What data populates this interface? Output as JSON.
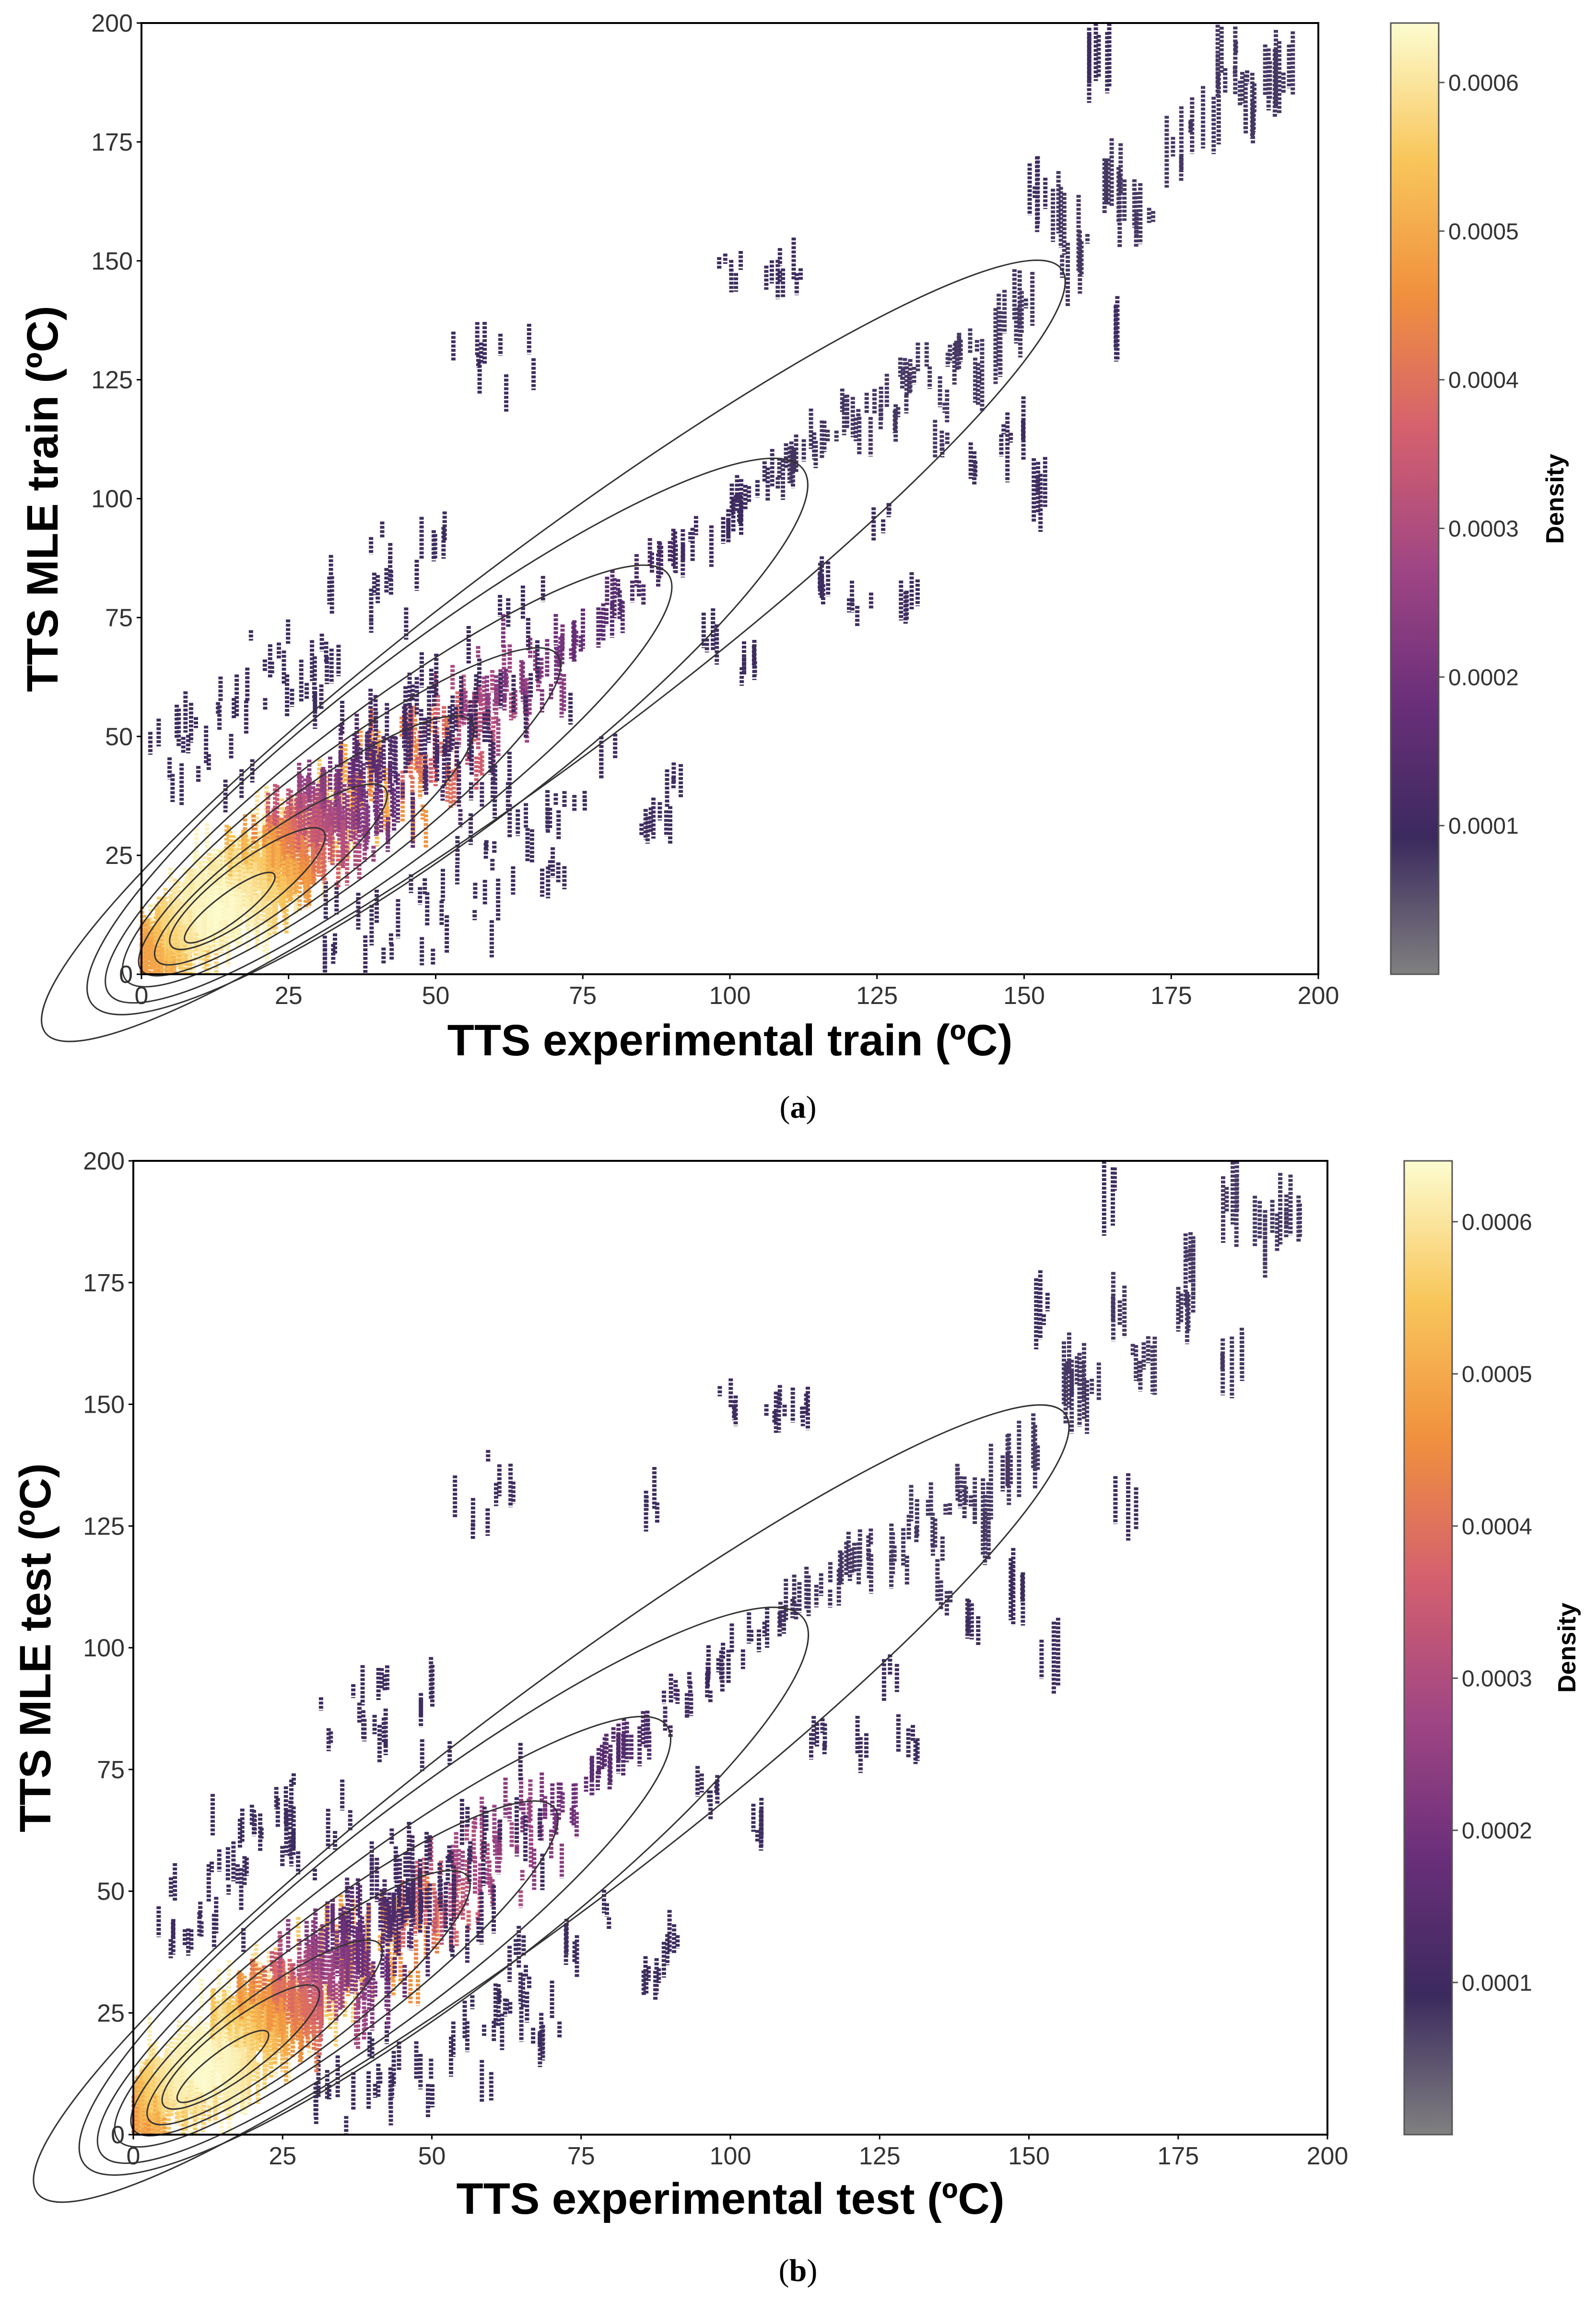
{
  "figure": {
    "panels": [
      {
        "caption_open": "(",
        "caption_letter": "a",
        "caption_close": ")"
      },
      {
        "caption_open": "(",
        "caption_letter": "b",
        "caption_close": ")"
      }
    ]
  },
  "colors": {
    "colormap": [
      "#808080",
      "#3b2a5e",
      "#6a2f7a",
      "#a04684",
      "#d4606e",
      "#f0903e",
      "#f8c65b",
      "#fcfcd0"
    ],
    "contour": "#333333",
    "frame": "#000000"
  },
  "chart_data": [
    {
      "type": "scatter",
      "title": "",
      "xlabel": "TTS experimental train (ºC)",
      "ylabel": "TTS MLE train (ºC)",
      "xlim": [
        0,
        200
      ],
      "ylim": [
        0,
        200
      ],
      "xticks": [
        0,
        25,
        50,
        75,
        100,
        125,
        150,
        175,
        200
      ],
      "yticks": [
        0,
        25,
        50,
        75,
        100,
        125,
        150,
        175,
        200
      ],
      "grid": false,
      "overlay": "kde density contours (colored by point density)",
      "colorbar": {
        "label": "Density",
        "ticks": [
          0.0001,
          0.0002,
          0.0003,
          0.0004,
          0.0005,
          0.0006
        ],
        "tick_labels": [
          "0.0001",
          "0.0002",
          "0.0003",
          "0.0004",
          "0.0005",
          "0.0006"
        ],
        "max": 0.00064
      },
      "density_peak": [
        13,
        14
      ],
      "trend": {
        "slope": 0.93,
        "intercept": 3
      },
      "clusters": [
        [
          2,
          8
        ],
        [
          5,
          10
        ],
        [
          8,
          12
        ],
        [
          10,
          15
        ],
        [
          13,
          14
        ],
        [
          15,
          18
        ],
        [
          18,
          20
        ],
        [
          20,
          22
        ],
        [
          22,
          25
        ],
        [
          25,
          27
        ],
        [
          27,
          28
        ],
        [
          30,
          30
        ],
        [
          32,
          33
        ],
        [
          35,
          35
        ],
        [
          38,
          37
        ],
        [
          40,
          40
        ],
        [
          42,
          38
        ],
        [
          45,
          45
        ],
        [
          48,
          44
        ],
        [
          50,
          48
        ],
        [
          52,
          50
        ],
        [
          55,
          52
        ],
        [
          58,
          55
        ],
        [
          60,
          58
        ],
        [
          62,
          60
        ],
        [
          65,
          62
        ],
        [
          68,
          64
        ],
        [
          70,
          67
        ],
        [
          72,
          70
        ],
        [
          75,
          72
        ],
        [
          78,
          75
        ],
        [
          80,
          78
        ],
        [
          82,
          80
        ],
        [
          85,
          82
        ],
        [
          88,
          86
        ],
        [
          90,
          88
        ],
        [
          92,
          90
        ],
        [
          95,
          92
        ],
        [
          98,
          95
        ],
        [
          100,
          97
        ],
        [
          102,
          100
        ],
        [
          105,
          103
        ],
        [
          108,
          106
        ],
        [
          110,
          108
        ],
        [
          112,
          110
        ],
        [
          115,
          112
        ],
        [
          118,
          115
        ],
        [
          120,
          118
        ],
        [
          122,
          116
        ],
        [
          125,
          120
        ],
        [
          128,
          118
        ],
        [
          130,
          125
        ],
        [
          132,
          128
        ],
        [
          135,
          122
        ],
        [
          138,
          130
        ],
        [
          140,
          132
        ],
        [
          142,
          125
        ],
        [
          145,
          135
        ],
        [
          148,
          138
        ],
        [
          150,
          140
        ],
        [
          152,
          165
        ],
        [
          155,
          160
        ],
        [
          158,
          150
        ],
        [
          160,
          155
        ],
        [
          165,
          168
        ],
        [
          166,
          135
        ],
        [
          168,
          162
        ],
        [
          170,
          160
        ],
        [
          175,
          172
        ],
        [
          177,
          178
        ],
        [
          182,
          180
        ],
        [
          184,
          192
        ],
        [
          186,
          187
        ],
        [
          188,
          182
        ],
        [
          192,
          188
        ],
        [
          194,
          190
        ],
        [
          163,
          193
        ],
        [
          100,
          148
        ],
        [
          108,
          148
        ],
        [
          111,
          148
        ],
        [
          60,
          128
        ],
        [
          38,
          82
        ],
        [
          46,
          86
        ],
        [
          86,
          30
        ],
        [
          88,
          33
        ],
        [
          20,
          60
        ],
        [
          25,
          65
        ],
        [
          30,
          62
        ],
        [
          12,
          48
        ],
        [
          8,
          45
        ],
        [
          70,
          20
        ],
        [
          65,
          28
        ],
        [
          55,
          15
        ],
        [
          45,
          12
        ],
        [
          35,
          8
        ],
        [
          15,
          5
        ],
        [
          131,
          80
        ],
        [
          152,
          102
        ],
        [
          122,
          78
        ],
        [
          104,
          65
        ],
        [
          90,
          40
        ],
        [
          80,
          45
        ],
        [
          115,
          82
        ],
        [
          140,
          105
        ],
        [
          126,
          95
        ],
        [
          96,
          70
        ],
        [
          74,
          38
        ],
        [
          60,
          30
        ],
        [
          148,
          112
        ],
        [
          136,
          112
        ]
      ]
    },
    {
      "type": "scatter",
      "title": "",
      "xlabel": "TTS experimental test (ºC)",
      "ylabel": "TTS MLE test (ºC)",
      "xlim": [
        0,
        200
      ],
      "ylim": [
        0,
        200
      ],
      "xticks": [
        0,
        25,
        50,
        75,
        100,
        125,
        150,
        175,
        200
      ],
      "yticks": [
        0,
        25,
        50,
        75,
        100,
        125,
        150,
        175,
        200
      ],
      "grid": false,
      "overlay": "kde density contours (colored by point density)",
      "colorbar": {
        "label": "Density",
        "ticks": [
          0.0001,
          0.0002,
          0.0003,
          0.0004,
          0.0005,
          0.0006
        ],
        "tick_labels": [
          "0.0001",
          "0.0002",
          "0.0003",
          "0.0004",
          "0.0005",
          "0.0006"
        ],
        "max": 0.00064
      },
      "density_peak": [
        12,
        14
      ],
      "trend": {
        "slope": 0.93,
        "intercept": 3
      },
      "clusters": [
        [
          2,
          8
        ],
        [
          5,
          10
        ],
        [
          8,
          12
        ],
        [
          10,
          14
        ],
        [
          12,
          14
        ],
        [
          15,
          17
        ],
        [
          18,
          20
        ],
        [
          20,
          22
        ],
        [
          22,
          24
        ],
        [
          25,
          26
        ],
        [
          27,
          28
        ],
        [
          30,
          30
        ],
        [
          32,
          33
        ],
        [
          35,
          35
        ],
        [
          38,
          37
        ],
        [
          40,
          40
        ],
        [
          42,
          38
        ],
        [
          45,
          44
        ],
        [
          48,
          45
        ],
        [
          50,
          48
        ],
        [
          52,
          50
        ],
        [
          55,
          52
        ],
        [
          58,
          55
        ],
        [
          60,
          57
        ],
        [
          62,
          60
        ],
        [
          65,
          62
        ],
        [
          68,
          65
        ],
        [
          70,
          67
        ],
        [
          72,
          70
        ],
        [
          75,
          72
        ],
        [
          78,
          75
        ],
        [
          80,
          78
        ],
        [
          82,
          80
        ],
        [
          85,
          82
        ],
        [
          88,
          85
        ],
        [
          90,
          88
        ],
        [
          92,
          90
        ],
        [
          95,
          92
        ],
        [
          98,
          95
        ],
        [
          100,
          98
        ],
        [
          102,
          100
        ],
        [
          105,
          103
        ],
        [
          108,
          106
        ],
        [
          110,
          108
        ],
        [
          112,
          110
        ],
        [
          115,
          112
        ],
        [
          118,
          115
        ],
        [
          120,
          118
        ],
        [
          122,
          116
        ],
        [
          125,
          120
        ],
        [
          128,
          118
        ],
        [
          130,
          125
        ],
        [
          132,
          128
        ],
        [
          135,
          122
        ],
        [
          138,
          130
        ],
        [
          140,
          132
        ],
        [
          142,
          125
        ],
        [
          145,
          135
        ],
        [
          148,
          138
        ],
        [
          150,
          140
        ],
        [
          152,
          168
        ],
        [
          155,
          158
        ],
        [
          158,
          152
        ],
        [
          160,
          155
        ],
        [
          163,
          195
        ],
        [
          165,
          170
        ],
        [
          166,
          130
        ],
        [
          168,
          160
        ],
        [
          170,
          158
        ],
        [
          175,
          170
        ],
        [
          177,
          178
        ],
        [
          184,
          192
        ],
        [
          184,
          160
        ],
        [
          188,
          185
        ],
        [
          192,
          188
        ],
        [
          194,
          190
        ],
        [
          100,
          150
        ],
        [
          108,
          150
        ],
        [
          111,
          150
        ],
        [
          60,
          132
        ],
        [
          38,
          85
        ],
        [
          46,
          86
        ],
        [
          86,
          30
        ],
        [
          88,
          33
        ],
        [
          20,
          60
        ],
        [
          25,
          66
        ],
        [
          30,
          62
        ],
        [
          12,
          48
        ],
        [
          8,
          45
        ],
        [
          70,
          20
        ],
        [
          65,
          28
        ],
        [
          55,
          15
        ],
        [
          45,
          12
        ],
        [
          35,
          8
        ],
        [
          15,
          5
        ],
        [
          130,
          80
        ],
        [
          153,
          100
        ],
        [
          122,
          80
        ],
        [
          104,
          64
        ],
        [
          90,
          40
        ],
        [
          80,
          45
        ],
        [
          115,
          82
        ],
        [
          140,
          105
        ],
        [
          126,
          95
        ],
        [
          96,
          70
        ],
        [
          74,
          38
        ],
        [
          60,
          30
        ],
        [
          148,
          112
        ],
        [
          136,
          112
        ],
        [
          86,
          130
        ]
      ]
    }
  ]
}
